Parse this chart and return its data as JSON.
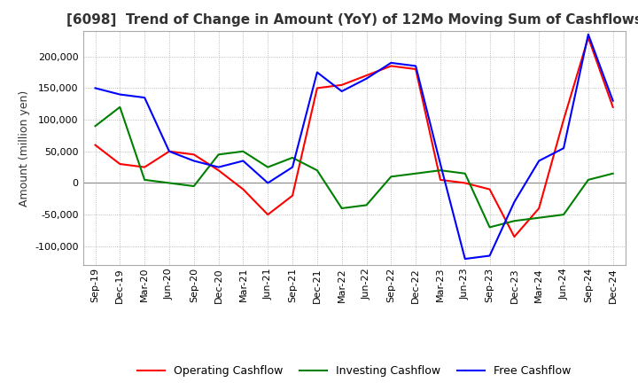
{
  "title": "[6098]  Trend of Change in Amount (YoY) of 12Mo Moving Sum of Cashflows",
  "ylabel": "Amount (million yen)",
  "ylim": [
    -130000,
    240000
  ],
  "yticks": [
    -100000,
    -50000,
    0,
    50000,
    100000,
    150000,
    200000
  ],
  "x_labels": [
    "Sep-19",
    "Dec-19",
    "Mar-20",
    "Jun-20",
    "Sep-20",
    "Dec-20",
    "Mar-21",
    "Jun-21",
    "Sep-21",
    "Dec-21",
    "Mar-22",
    "Jun-22",
    "Sep-22",
    "Dec-22",
    "Mar-23",
    "Jun-23",
    "Sep-23",
    "Dec-23",
    "Mar-24",
    "Jun-24",
    "Sep-24",
    "Dec-24"
  ],
  "operating": [
    60000,
    30000,
    25000,
    50000,
    45000,
    20000,
    -10000,
    -50000,
    -20000,
    150000,
    155000,
    170000,
    185000,
    180000,
    5000,
    0,
    -10000,
    -85000,
    -40000,
    100000,
    230000,
    120000
  ],
  "investing": [
    90000,
    120000,
    5000,
    0,
    -5000,
    45000,
    50000,
    25000,
    40000,
    20000,
    -40000,
    -35000,
    10000,
    15000,
    20000,
    15000,
    -70000,
    -60000,
    -55000,
    -50000,
    5000,
    15000
  ],
  "free": [
    150000,
    140000,
    135000,
    50000,
    35000,
    25000,
    35000,
    0,
    25000,
    175000,
    145000,
    165000,
    190000,
    185000,
    30000,
    -120000,
    -115000,
    -30000,
    35000,
    55000,
    235000,
    130000
  ],
  "operating_color": "#ff0000",
  "investing_color": "#008000",
  "free_color": "#0000ff",
  "background_color": "#ffffff",
  "grid_color": "#aaaaaa",
  "title_color": "#333333",
  "title_fontsize": 11,
  "label_fontsize": 9,
  "tick_fontsize": 8
}
